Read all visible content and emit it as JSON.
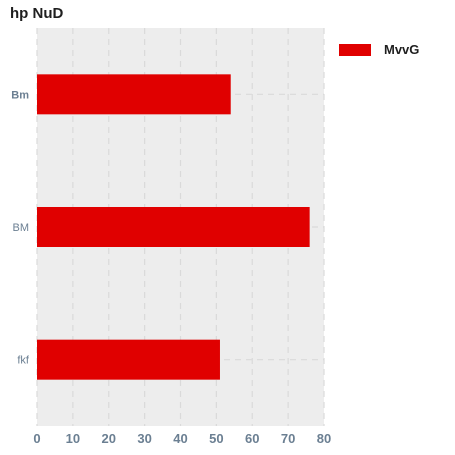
{
  "chart_data": {
    "type": "bar",
    "orientation": "horizontal",
    "title": "hp NuD",
    "xlabel": "",
    "ylabel": "",
    "categories": [
      "Bm",
      "BM",
      "fkf"
    ],
    "series": [
      {
        "name": "MvvG",
        "values": [
          54,
          76,
          51
        ],
        "color": "#e00000"
      }
    ],
    "xlim": [
      0,
      80
    ],
    "xticks": [
      "0",
      "10",
      "20",
      "30",
      "40",
      "50",
      "60",
      "70",
      "80"
    ],
    "grid": true,
    "grid_style": "dashed",
    "plot_background": "#ededed",
    "legend_position": "top-right"
  }
}
